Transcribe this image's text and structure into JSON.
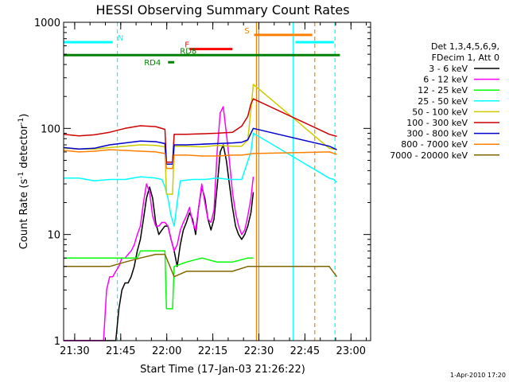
{
  "chart_data": {
    "type": "line",
    "title": "HESSI Observing Summary Count Rates",
    "xlabel": "Start Time (17-Jan-03 21:26:22)",
    "ylabel": "Count Rate (s⁻¹ detector⁻¹)",
    "ylabel_parts": {
      "main": "Count Rate (s",
      "sup1": "-1",
      "mid": " detector",
      "sup2": "-1",
      "end": ")"
    },
    "y_scale": "log",
    "ylim": [
      1,
      1000
    ],
    "y_ticks": [
      {
        "value": 1,
        "label": "1"
      },
      {
        "value": 10,
        "label": "10"
      },
      {
        "value": 100,
        "label": "100"
      },
      {
        "value": 1000,
        "label": "1000"
      }
    ],
    "x_unit": "minutes since 21:26:22",
    "xlim": [
      0,
      100
    ],
    "x_ticks": [
      {
        "value": 3.6,
        "label": "21:30"
      },
      {
        "value": 18.6,
        "label": "21:45"
      },
      {
        "value": 33.6,
        "label": "22:00"
      },
      {
        "value": 48.6,
        "label": "22:15"
      },
      {
        "value": 63.6,
        "label": "22:30"
      },
      {
        "value": 78.6,
        "label": "22:45"
      },
      {
        "value": 93.6,
        "label": "23:00"
      }
    ],
    "legend": {
      "placement": "right",
      "header1": "Det 1,3,4,5,6,9,",
      "header2": "FDecim 1, Att 0"
    },
    "series": [
      {
        "name": "3 - 6 keV",
        "color": "#000000",
        "points": [
          [
            0,
            1
          ],
          [
            17,
            1
          ],
          [
            18,
            2
          ],
          [
            19,
            3
          ],
          [
            20,
            3.5
          ],
          [
            21,
            3.5
          ],
          [
            22,
            4
          ],
          [
            23,
            5
          ],
          [
            24,
            7
          ],
          [
            25,
            9
          ],
          [
            26,
            14
          ],
          [
            27,
            22
          ],
          [
            28,
            28
          ],
          [
            29,
            22
          ],
          [
            30,
            13
          ],
          [
            31,
            10
          ],
          [
            32,
            11
          ],
          [
            33,
            12
          ],
          [
            34,
            12
          ],
          [
            35,
            9
          ],
          [
            36,
            7
          ],
          [
            37,
            5
          ],
          [
            38,
            8
          ],
          [
            39,
            11
          ],
          [
            40,
            13
          ],
          [
            41,
            16
          ],
          [
            42,
            14
          ],
          [
            43,
            10
          ],
          [
            44,
            18
          ],
          [
            45,
            28
          ],
          [
            46,
            22
          ],
          [
            47,
            14
          ],
          [
            48,
            11
          ],
          [
            49,
            14
          ],
          [
            50,
            28
          ],
          [
            51,
            60
          ],
          [
            52,
            70
          ],
          [
            53,
            50
          ],
          [
            54,
            30
          ],
          [
            55,
            18
          ],
          [
            56,
            12
          ],
          [
            57,
            10
          ],
          [
            58,
            9
          ],
          [
            59,
            10
          ],
          [
            60,
            12
          ],
          [
            61,
            16
          ],
          [
            61.8,
            25
          ]
        ]
      },
      {
        "name": "6 - 12 keV",
        "color": "#ff00ff",
        "points": [
          [
            0,
            1
          ],
          [
            13,
            1
          ],
          [
            14,
            3
          ],
          [
            15,
            4
          ],
          [
            16,
            4
          ],
          [
            17,
            4.5
          ],
          [
            18,
            5
          ],
          [
            19,
            6
          ],
          [
            20,
            6
          ],
          [
            21,
            6.5
          ],
          [
            22,
            7
          ],
          [
            23,
            8
          ],
          [
            24,
            10
          ],
          [
            25,
            12
          ],
          [
            26,
            20
          ],
          [
            27,
            30
          ],
          [
            28,
            25
          ],
          [
            29,
            15
          ],
          [
            30,
            12
          ],
          [
            31,
            12
          ],
          [
            32,
            13
          ],
          [
            33,
            13
          ],
          [
            34,
            12
          ],
          [
            35,
            9
          ],
          [
            36,
            7
          ],
          [
            37,
            8
          ],
          [
            38,
            11
          ],
          [
            39,
            13
          ],
          [
            40,
            15
          ],
          [
            41,
            18
          ],
          [
            42,
            13
          ],
          [
            43,
            11
          ],
          [
            44,
            18
          ],
          [
            45,
            30
          ],
          [
            46,
            20
          ],
          [
            47,
            14
          ],
          [
            48,
            13
          ],
          [
            49,
            17
          ],
          [
            50,
            60
          ],
          [
            51,
            140
          ],
          [
            52,
            160
          ],
          [
            53,
            90
          ],
          [
            54,
            50
          ],
          [
            55,
            25
          ],
          [
            56,
            16
          ],
          [
            57,
            12
          ],
          [
            58,
            10
          ],
          [
            59,
            11
          ],
          [
            60,
            15
          ],
          [
            61,
            22
          ],
          [
            61.8,
            35
          ]
        ]
      },
      {
        "name": "12 - 25 keV",
        "color": "#00ff00",
        "points": [
          [
            0,
            6
          ],
          [
            10,
            6
          ],
          [
            20,
            6
          ],
          [
            24,
            6
          ],
          [
            25,
            7
          ],
          [
            33,
            7
          ],
          [
            33.5,
            2
          ],
          [
            35.5,
            2
          ],
          [
            36,
            5
          ],
          [
            40,
            5.5
          ],
          [
            45,
            6
          ],
          [
            50,
            5.5
          ],
          [
            55,
            5.5
          ],
          [
            60,
            6
          ],
          [
            61.8,
            6
          ]
        ]
      },
      {
        "name": "25 - 50 keV",
        "color": "#00ffff",
        "points": [
          [
            0,
            34
          ],
          [
            5,
            34
          ],
          [
            10,
            32
          ],
          [
            15,
            33
          ],
          [
            20,
            33
          ],
          [
            25,
            35
          ],
          [
            30,
            34
          ],
          [
            32,
            33
          ],
          [
            33,
            28
          ],
          [
            34,
            22
          ],
          [
            35,
            15
          ],
          [
            36,
            12
          ],
          [
            37,
            20
          ],
          [
            38,
            32
          ],
          [
            42,
            33
          ],
          [
            46,
            33
          ],
          [
            50,
            34
          ],
          [
            54,
            33
          ],
          [
            58,
            33
          ],
          [
            61,
            60
          ],
          [
            61.8,
            90
          ],
          [
            86.5,
            34
          ],
          [
            88,
            33
          ],
          [
            89,
            31
          ]
        ]
      },
      {
        "name": "50 - 100 keV",
        "color": "#cccc00",
        "points": [
          [
            0,
            65
          ],
          [
            5,
            64
          ],
          [
            10,
            64
          ],
          [
            15,
            66
          ],
          [
            20,
            68
          ],
          [
            25,
            70
          ],
          [
            30,
            69
          ],
          [
            33,
            67
          ],
          [
            33.5,
            24
          ],
          [
            35.5,
            24
          ],
          [
            36,
            68
          ],
          [
            40,
            68
          ],
          [
            45,
            67
          ],
          [
            50,
            69
          ],
          [
            55,
            68
          ],
          [
            58,
            68
          ],
          [
            60,
            78
          ],
          [
            61,
            150
          ],
          [
            61.8,
            260
          ],
          [
            86.5,
            65
          ],
          [
            89,
            63
          ]
        ]
      },
      {
        "name": "100 - 300 keV",
        "color": "#cc0000",
        "points": [
          [
            0,
            88
          ],
          [
            5,
            85
          ],
          [
            10,
            87
          ],
          [
            15,
            92
          ],
          [
            20,
            100
          ],
          [
            25,
            106
          ],
          [
            30,
            104
          ],
          [
            33,
            98
          ],
          [
            33.5,
            48
          ],
          [
            35.5,
            48
          ],
          [
            36,
            88
          ],
          [
            40,
            88
          ],
          [
            45,
            89
          ],
          [
            50,
            90
          ],
          [
            55,
            92
          ],
          [
            58,
            105
          ],
          [
            60,
            130
          ],
          [
            61,
            170
          ],
          [
            61.8,
            190
          ],
          [
            86.5,
            88
          ],
          [
            89,
            84
          ]
        ]
      },
      {
        "name": "300 - 800 keV",
        "color": "#0000cc",
        "points": [
          [
            0,
            66
          ],
          [
            5,
            64
          ],
          [
            10,
            65
          ],
          [
            15,
            70
          ],
          [
            20,
            73
          ],
          [
            25,
            76
          ],
          [
            30,
            75
          ],
          [
            33,
            72
          ],
          [
            33.5,
            46
          ],
          [
            35.5,
            46
          ],
          [
            36,
            70
          ],
          [
            40,
            70
          ],
          [
            45,
            71
          ],
          [
            50,
            72
          ],
          [
            55,
            73
          ],
          [
            58,
            74
          ],
          [
            60,
            78
          ],
          [
            61,
            90
          ],
          [
            61.8,
            100
          ],
          [
            86.5,
            68
          ],
          [
            89,
            63
          ]
        ]
      },
      {
        "name": "800 - 7000 keV",
        "color": "#ff8000",
        "points": [
          [
            0,
            62
          ],
          [
            5,
            60
          ],
          [
            10,
            61
          ],
          [
            15,
            63
          ],
          [
            20,
            62
          ],
          [
            25,
            61
          ],
          [
            30,
            60
          ],
          [
            33,
            58
          ],
          [
            33.5,
            42
          ],
          [
            35.5,
            42
          ],
          [
            36,
            56
          ],
          [
            40,
            56
          ],
          [
            45,
            55
          ],
          [
            50,
            55
          ],
          [
            55,
            56
          ],
          [
            58,
            56
          ],
          [
            60,
            57
          ],
          [
            61.8,
            58
          ],
          [
            86.5,
            60
          ],
          [
            89,
            57
          ]
        ]
      },
      {
        "name": "7000 - 20000 keV",
        "color": "#806600",
        "points": [
          [
            0,
            5
          ],
          [
            5,
            5
          ],
          [
            10,
            5
          ],
          [
            15,
            5
          ],
          [
            20,
            5.5
          ],
          [
            25,
            6
          ],
          [
            30,
            6.5
          ],
          [
            33,
            6.5
          ],
          [
            36,
            4
          ],
          [
            40,
            4.5
          ],
          [
            45,
            4.5
          ],
          [
            50,
            4.5
          ],
          [
            55,
            4.5
          ],
          [
            60,
            5
          ],
          [
            61.8,
            5
          ],
          [
            86.5,
            5
          ],
          [
            89,
            4
          ]
        ]
      }
    ],
    "flag_bars": [
      {
        "label": "N",
        "color": "#00ffff",
        "y": 650,
        "segments": [
          [
            0,
            16
          ],
          [
            75.5,
            88
          ]
        ]
      },
      {
        "label": "S",
        "color": "#ff8000",
        "y": 760,
        "segments": [
          [
            62,
            81
          ]
        ]
      },
      {
        "label": "F",
        "color": "#ff0000",
        "y": 560,
        "segments": [
          [
            41,
            55
          ]
        ]
      },
      {
        "label": "RD8",
        "color": "#008000",
        "y": 490,
        "segments": [
          [
            0,
            90
          ]
        ]
      },
      {
        "label": "RD4",
        "color": "#008000",
        "y": 420,
        "segments": [
          [
            34,
            36
          ]
        ]
      }
    ],
    "vertical_lines": [
      {
        "x": 17.5,
        "color": "#00ffff",
        "style": "dashed"
      },
      {
        "x": 62.8,
        "color": "#ff8000",
        "style": "solid"
      },
      {
        "x": 63.6,
        "color": "#ff8000",
        "style": "solid"
      },
      {
        "x": 74.8,
        "color": "#00ffff",
        "style": "solid"
      },
      {
        "x": 81.8,
        "color": "#ff8000",
        "style": "dashed"
      },
      {
        "x": 88.4,
        "color": "#00ffff",
        "style": "dashed"
      }
    ],
    "footer": "1-Apr-2010 17:20"
  }
}
